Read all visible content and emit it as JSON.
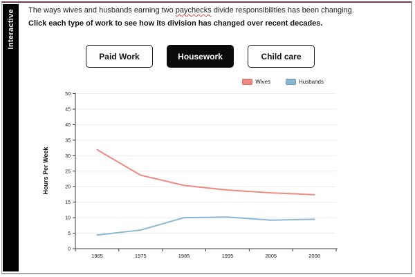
{
  "sidebar": {
    "label": "Interactive"
  },
  "intro": {
    "line1_before": "The ways wives and husbands earning two ",
    "line1_highlight": "paychecks",
    "line1_after": " divide responsibilities has been changing.",
    "line2": "Click each type of work to see how its division has changed over recent decades."
  },
  "tabs": [
    {
      "label": "Paid Work",
      "active": false
    },
    {
      "label": "Housework",
      "active": true
    },
    {
      "label": "Child care",
      "active": false
    }
  ],
  "legend": [
    {
      "label": "Wives",
      "color": "#ee8a82"
    },
    {
      "label": "Husbands",
      "color": "#8ab8d2"
    }
  ],
  "chart_data": {
    "type": "line",
    "categories": [
      "1965",
      "1975",
      "1985",
      "1995",
      "2005",
      "2008"
    ],
    "series": [
      {
        "name": "Wives",
        "color": "#ee8a82",
        "values": [
          31.9,
          23.7,
          20.4,
          18.9,
          18.0,
          17.4
        ]
      },
      {
        "name": "Husbands",
        "color": "#8ab8d2",
        "values": [
          4.4,
          6.0,
          10.0,
          10.2,
          9.2,
          9.5
        ]
      }
    ],
    "title": "",
    "xlabel": "",
    "ylabel": "Hours Per Week",
    "ylim": [
      0,
      50
    ],
    "ytick_step": 5,
    "grid": true,
    "legend_position": "top-right"
  },
  "colors": {
    "active_tab_bg": "#0a0a0a",
    "sidebar_bg": "#000000",
    "top_border": "#6b4343",
    "card_border": "#a8a8a8",
    "grid": "#ececec",
    "axis": "#3c3c3c",
    "spellcheck_underline": "#e0443f"
  }
}
